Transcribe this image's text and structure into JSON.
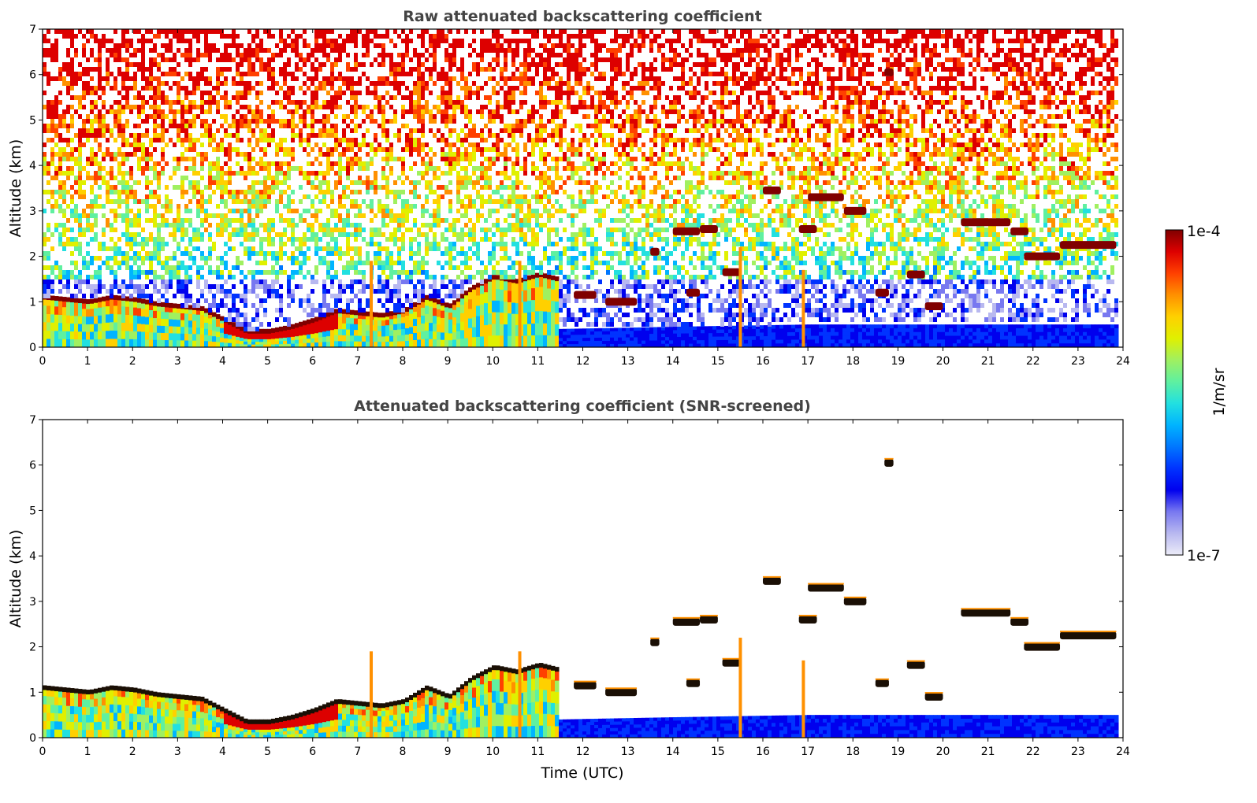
{
  "colors": {
    "colormap": [
      "#ececf8",
      "#b8b8f0",
      "#7878f0",
      "#0000ee",
      "#0033ff",
      "#0077ff",
      "#00b4ff",
      "#22e0e0",
      "#5ff0a0",
      "#a0f060",
      "#e0f000",
      "#ffd000",
      "#ff9000",
      "#ff4000",
      "#dd0000",
      "#800000"
    ],
    "cloud_core": "#1a0f05"
  },
  "colorbar": {
    "top_label": "1e-4",
    "bottom_label": "1e-7",
    "unit": "1/m/sr"
  },
  "chart_data": [
    {
      "type": "heatmap",
      "title": "Raw attenuated backscattering coefficient",
      "xlabel": "",
      "ylabel": "Altitude (km)",
      "xlim": [
        0,
        24
      ],
      "ylim": [
        0,
        7
      ],
      "x_ticks": [
        "0",
        "1",
        "2",
        "3",
        "4",
        "5",
        "6",
        "7",
        "8",
        "9",
        "10",
        "11",
        "12",
        "13",
        "14",
        "15",
        "16",
        "17",
        "18",
        "19",
        "20",
        "21",
        "22",
        "23",
        "24"
      ],
      "y_ticks": [
        "0",
        "1",
        "2",
        "3",
        "4",
        "5",
        "6",
        "7"
      ],
      "color_scale": "log",
      "color_range": [
        1e-07,
        0.0001
      ],
      "data_end_hour": 23.85,
      "boundary_layer_top_km": [
        [
          0,
          1.1
        ],
        [
          0.5,
          1.05
        ],
        [
          1,
          1.0
        ],
        [
          1.5,
          1.1
        ],
        [
          2,
          1.05
        ],
        [
          2.5,
          0.95
        ],
        [
          3,
          0.9
        ],
        [
          3.5,
          0.85
        ],
        [
          4,
          0.6
        ],
        [
          4.5,
          0.35
        ],
        [
          5,
          0.35
        ],
        [
          5.5,
          0.45
        ],
        [
          6,
          0.6
        ],
        [
          6.5,
          0.8
        ],
        [
          7,
          0.75
        ],
        [
          7.5,
          0.7
        ],
        [
          8,
          0.8
        ],
        [
          8.5,
          1.1
        ],
        [
          9,
          0.9
        ],
        [
          9.5,
          1.3
        ],
        [
          10,
          1.55
        ],
        [
          10.5,
          1.45
        ],
        [
          11,
          1.6
        ],
        [
          11.4,
          1.5
        ]
      ],
      "noise_floor_km": [
        [
          11.4,
          0.4
        ],
        [
          14,
          0.45
        ],
        [
          17,
          0.5
        ],
        [
          20,
          0.5
        ],
        [
          23.85,
          0.5
        ]
      ],
      "cloud_segments": [
        {
          "x0": 16.0,
          "x1": 16.4,
          "y": 3.45
        },
        {
          "x0": 17.0,
          "x1": 17.8,
          "y": 3.3
        },
        {
          "x0": 17.8,
          "x1": 18.3,
          "y": 3.0
        },
        {
          "x0": 14.0,
          "x1": 14.6,
          "y": 2.55
        },
        {
          "x0": 14.6,
          "x1": 15.0,
          "y": 2.6
        },
        {
          "x0": 20.4,
          "x1": 21.5,
          "y": 2.75
        },
        {
          "x0": 21.5,
          "x1": 21.9,
          "y": 2.55
        },
        {
          "x0": 21.8,
          "x1": 22.6,
          "y": 2.0
        },
        {
          "x0": 22.6,
          "x1": 23.85,
          "y": 2.25
        },
        {
          "x0": 15.1,
          "x1": 15.5,
          "y": 1.65
        },
        {
          "x0": 12.5,
          "x1": 13.2,
          "y": 1.0
        },
        {
          "x0": 11.8,
          "x1": 12.3,
          "y": 1.15
        },
        {
          "x0": 16.8,
          "x1": 17.2,
          "y": 2.6
        },
        {
          "x0": 18.5,
          "x1": 18.8,
          "y": 1.2
        },
        {
          "x0": 19.2,
          "x1": 19.6,
          "y": 1.6
        },
        {
          "x0": 19.6,
          "x1": 20.0,
          "y": 0.9
        },
        {
          "x0": 13.5,
          "x1": 13.7,
          "y": 2.1
        },
        {
          "x0": 14.3,
          "x1": 14.6,
          "y": 1.2
        },
        {
          "x0": 18.7,
          "x1": 18.9,
          "y": 6.05
        }
      ],
      "vertical_streaks": [
        {
          "x": 15.5,
          "y0": 0,
          "y1": 2.2
        },
        {
          "x": 16.9,
          "y0": 0,
          "y1": 1.7
        },
        {
          "x": 10.6,
          "y0": 0,
          "y1": 1.9
        },
        {
          "x": 7.3,
          "y0": 0,
          "y1": 1.9
        }
      ]
    },
    {
      "type": "heatmap",
      "title": "Attenuated backscattering coefficient (SNR-screened)",
      "xlabel": "Time (UTC)",
      "ylabel": "Altitude (km)",
      "xlim": [
        0,
        24
      ],
      "ylim": [
        0,
        7
      ],
      "x_ticks": [
        "0",
        "1",
        "2",
        "3",
        "4",
        "5",
        "6",
        "7",
        "8",
        "9",
        "10",
        "11",
        "12",
        "13",
        "14",
        "15",
        "16",
        "17",
        "18",
        "19",
        "20",
        "21",
        "22",
        "23",
        "24"
      ],
      "y_ticks": [
        "0",
        "1",
        "2",
        "3",
        "4",
        "5",
        "6",
        "7"
      ],
      "color_scale": "log",
      "color_range": [
        1e-07,
        0.0001
      ]
    }
  ]
}
